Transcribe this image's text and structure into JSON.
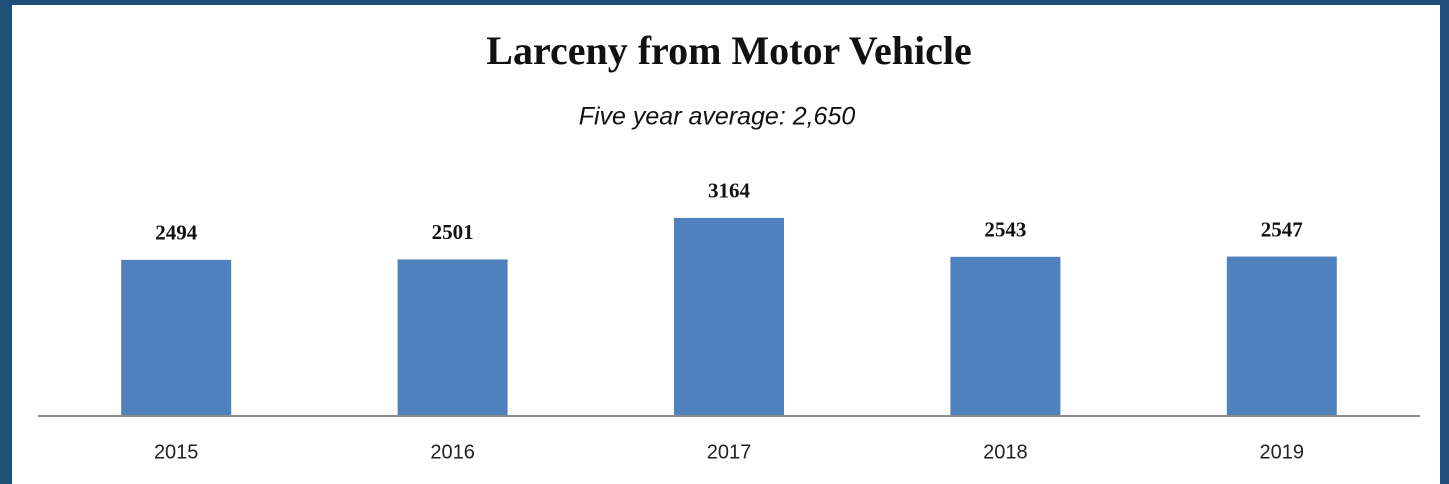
{
  "chart_data": {
    "type": "bar",
    "title": "Larceny from Motor Vehicle",
    "subtitle": "Five year average: 2,650",
    "categories": [
      "2015",
      "2016",
      "2017",
      "2018",
      "2019"
    ],
    "values": [
      2494,
      2501,
      3164,
      2543,
      2547
    ],
    "color": "#4f81bd"
  }
}
